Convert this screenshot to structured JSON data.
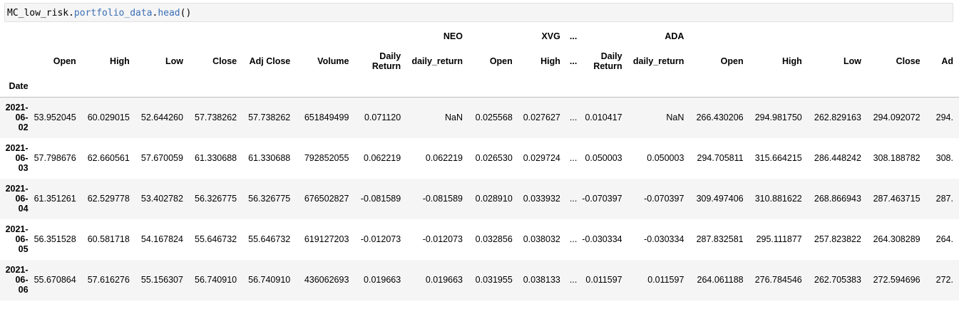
{
  "input_code": {
    "prefix": "MC_low_risk.",
    "method1": "portfolio_data",
    "dot": ".",
    "method2": "head",
    "suffix": "()"
  },
  "table": {
    "top_headers": [
      "",
      "",
      "",
      "",
      "",
      "",
      "",
      "NEO",
      "",
      "XVG",
      "...",
      "",
      "ADA",
      "",
      "",
      "",
      "",
      ""
    ],
    "columns": [
      "Open",
      "High",
      "Low",
      "Close",
      "Adj Close",
      "Volume",
      "Daily\nReturn",
      "daily_return",
      "Open",
      "High",
      "...",
      "Daily\nReturn",
      "daily_return",
      "Open",
      "High",
      "Low",
      "Close",
      "Ad"
    ],
    "index_name": "Date",
    "rows": [
      {
        "date": [
          "2021-",
          "06-",
          "02"
        ],
        "values": [
          "53.952045",
          "60.029015",
          "52.644260",
          "57.738262",
          "57.738262",
          "651849499",
          "0.071120",
          "NaN",
          "0.025568",
          "0.027627",
          "...",
          "0.010417",
          "NaN",
          "266.430206",
          "294.981750",
          "262.829163",
          "294.092072",
          "294."
        ]
      },
      {
        "date": [
          "2021-",
          "06-",
          "03"
        ],
        "values": [
          "57.798676",
          "62.660561",
          "57.670059",
          "61.330688",
          "61.330688",
          "792852055",
          "0.062219",
          "0.062219",
          "0.026530",
          "0.029724",
          "...",
          "0.050003",
          "0.050003",
          "294.705811",
          "315.664215",
          "286.448242",
          "308.188782",
          "308."
        ]
      },
      {
        "date": [
          "2021-",
          "06-",
          "04"
        ],
        "values": [
          "61.351261",
          "62.529778",
          "53.402782",
          "56.326775",
          "56.326775",
          "676502827",
          "-0.081589",
          "-0.081589",
          "0.028910",
          "0.033932",
          "...",
          "-0.070397",
          "-0.070397",
          "309.497406",
          "310.881622",
          "268.866943",
          "287.463715",
          "287."
        ]
      },
      {
        "date": [
          "2021-",
          "06-",
          "05"
        ],
        "values": [
          "56.351528",
          "60.581718",
          "54.167824",
          "55.646732",
          "55.646732",
          "619127203",
          "-0.012073",
          "-0.012073",
          "0.032856",
          "0.038032",
          "...",
          "-0.030334",
          "-0.030334",
          "287.832581",
          "295.111877",
          "257.823822",
          "264.308289",
          "264."
        ]
      },
      {
        "date": [
          "2021-",
          "06-",
          "06"
        ],
        "values": [
          "55.670864",
          "57.616276",
          "55.156307",
          "56.740910",
          "56.740910",
          "436062693",
          "0.019663",
          "0.019663",
          "0.031955",
          "0.038133",
          "...",
          "0.011597",
          "0.011597",
          "264.061188",
          "276.784546",
          "262.705383",
          "272.594696",
          "272."
        ]
      }
    ]
  }
}
